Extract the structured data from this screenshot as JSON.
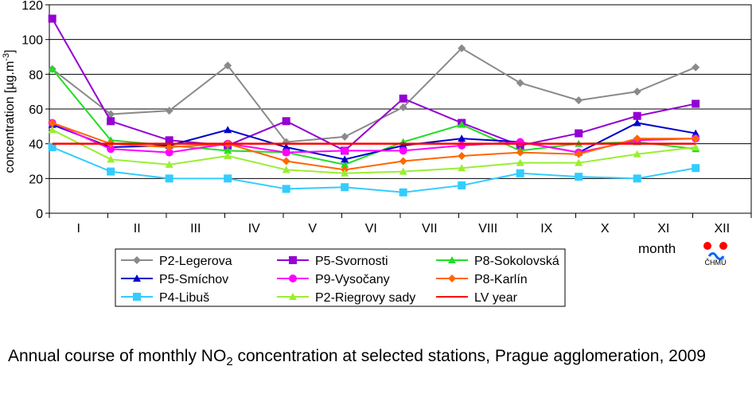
{
  "chart_data": {
    "type": "line",
    "ylabel": "concentration [µg.m-3]",
    "ylabel_main": "concentration [µg.m",
    "ylabel_sup": "-3",
    "ylabel_tail": "]",
    "xlabel": "month",
    "ylim": [
      0,
      120
    ],
    "yticks": [
      "0",
      "20",
      "40",
      "60",
      "80",
      "100",
      "120"
    ],
    "grid": true,
    "legend_position": "bottom",
    "categories": [
      "I",
      "II",
      "III",
      "IV",
      "V",
      "VI",
      "VII",
      "VIII",
      "IX",
      "X",
      "XI",
      "XII"
    ],
    "series": [
      {
        "name": "P2-Legerova",
        "color": "#8a8a8a",
        "marker": "diamond",
        "values": [
          83,
          57,
          59,
          85,
          41,
          44,
          61,
          95,
          75,
          65,
          70,
          84
        ]
      },
      {
        "name": "P5-Svornosti",
        "color": "#9400d3",
        "marker": "square",
        "values": [
          112,
          53,
          42,
          39,
          53,
          36,
          66,
          52,
          39,
          46,
          56,
          63
        ]
      },
      {
        "name": "P8-Sokolovská",
        "color": "#22dd22",
        "marker": "triangle",
        "values": [
          83,
          42,
          39,
          36,
          35,
          28,
          41,
          51,
          36,
          40,
          41,
          37
        ]
      },
      {
        "name": "P5-Smíchov",
        "color": "#0000cc",
        "marker": "triangle",
        "values": [
          51,
          38,
          39,
          48,
          38,
          31,
          39,
          43,
          41,
          35,
          52,
          46
        ]
      },
      {
        "name": "P9-Vysočany",
        "color": "#ff00ff",
        "marker": "circle",
        "values": [
          52,
          37,
          35,
          40,
          35,
          36,
          36,
          39,
          41,
          35,
          42,
          43
        ]
      },
      {
        "name": "P8-Karlín",
        "color": "#ff6600",
        "marker": "diamond",
        "values": [
          52,
          40,
          38,
          40,
          30,
          25,
          30,
          33,
          35,
          34,
          43,
          43
        ]
      },
      {
        "name": "P4-Libuš",
        "color": "#33ccff",
        "marker": "square",
        "values": [
          38,
          24,
          20,
          20,
          14,
          15,
          12,
          16,
          23,
          21,
          20,
          26
        ]
      },
      {
        "name": "P2-Riegrovy sady",
        "color": "#99ee33",
        "marker": "triangle",
        "values": [
          48,
          31,
          28,
          33,
          25,
          23,
          24,
          26,
          29,
          29,
          34,
          38
        ]
      },
      {
        "name": "LV year",
        "color": "#ff0000",
        "marker": "none",
        "values": [
          40,
          40,
          40,
          40,
          40,
          40,
          40,
          40,
          40,
          40,
          40,
          40
        ]
      }
    ]
  },
  "logo": {
    "text": "ČHMÚ",
    "colors": [
      "#ff0000",
      "#0066ff"
    ]
  },
  "caption": {
    "prefix": "Annual course of monthly NO",
    "subscript": "2",
    "suffix": " concentration at selected stations, Prague agglomeration, 2009"
  }
}
